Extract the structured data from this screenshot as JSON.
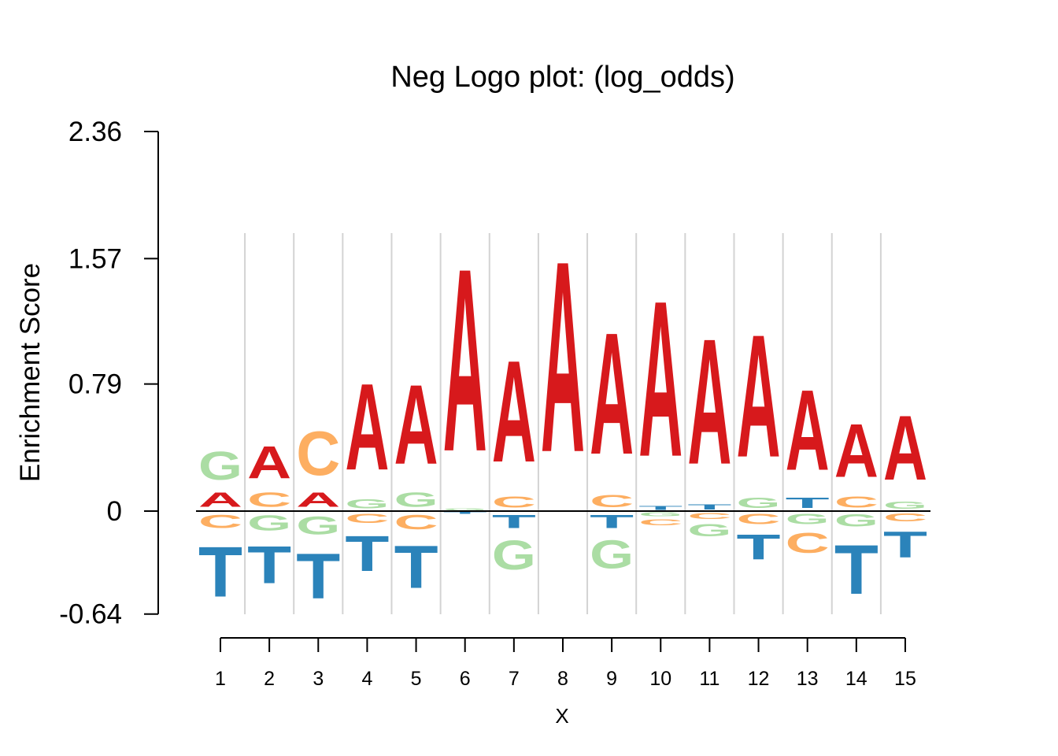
{
  "chart_data": {
    "type": "sequence-logo",
    "title": "Neg Logo plot: (log_odds)",
    "xlabel": "X",
    "ylabel": "Enrichment Score",
    "yticks": [
      -0.64,
      0,
      0.79,
      1.57,
      2.36
    ],
    "ytick_labels": [
      "-0.64",
      "0",
      "0.79",
      "1.57",
      "2.36"
    ],
    "ylim": [
      -0.64,
      2.36
    ],
    "positions": [
      "1",
      "2",
      "3",
      "4",
      "5",
      "6",
      "7",
      "8",
      "9",
      "10",
      "11",
      "12",
      "13",
      "14",
      "15"
    ],
    "colors": {
      "A": "#d7191c",
      "C": "#fdae61",
      "G": "#abdda4",
      "T": "#2b83ba"
    },
    "letters": [
      {
        "pos": 1,
        "positive": [
          [
            "A",
            0.14
          ],
          [
            "G",
            0.28
          ]
        ],
        "negative": [
          [
            "C",
            0.13
          ],
          [
            "T",
            0.5
          ]
        ]
      },
      {
        "pos": 2,
        "positive": [
          [
            "C",
            0.14
          ],
          [
            "A",
            0.32
          ]
        ],
        "negative": [
          [
            "G",
            0.15
          ],
          [
            "T",
            0.37
          ]
        ]
      },
      {
        "pos": 3,
        "positive": [
          [
            "A",
            0.14
          ],
          [
            "C",
            0.44
          ]
        ],
        "negative": [
          [
            "G",
            0.18
          ],
          [
            "T",
            0.45
          ]
        ]
      },
      {
        "pos": 4,
        "positive": [
          [
            "G",
            0.09
          ],
          [
            "A",
            0.86
          ]
        ],
        "negative": [
          [
            "C",
            0.09
          ],
          [
            "T",
            0.35
          ]
        ]
      },
      {
        "pos": 5,
        "positive": [
          [
            "G",
            0.14
          ],
          [
            "A",
            0.79
          ]
        ],
        "negative": [
          [
            "C",
            0.14
          ],
          [
            "T",
            0.42
          ]
        ]
      },
      {
        "pos": 6,
        "positive": [
          [
            "G",
            0.02
          ],
          [
            "A",
            1.82
          ]
        ],
        "negative": [
          [
            "T",
            0.02
          ]
        ]
      },
      {
        "pos": 7,
        "positive": [
          [
            "C",
            0.11
          ],
          [
            "A",
            1.01
          ]
        ],
        "negative": [
          [
            "T",
            0.13
          ],
          [
            "G",
            0.29
          ]
        ]
      },
      {
        "pos": 8,
        "positive": [
          [
            "A",
            1.9
          ]
        ],
        "negative": []
      },
      {
        "pos": 9,
        "positive": [
          [
            "C",
            0.12
          ],
          [
            "A",
            1.21
          ]
        ],
        "negative": [
          [
            "T",
            0.13
          ],
          [
            "G",
            0.28
          ]
        ]
      },
      {
        "pos": 10,
        "positive": [
          [
            "T",
            0.04
          ],
          [
            "A",
            1.55
          ]
        ],
        "negative": [
          [
            "G",
            0.04
          ],
          [
            "C",
            0.06
          ]
        ]
      },
      {
        "pos": 11,
        "positive": [
          [
            "T",
            0.05
          ],
          [
            "A",
            1.25
          ]
        ],
        "negative": [
          [
            "C",
            0.06
          ],
          [
            "G",
            0.12
          ]
        ]
      },
      {
        "pos": 12,
        "positive": [
          [
            "G",
            0.1
          ],
          [
            "A",
            1.22
          ]
        ],
        "negative": [
          [
            "C",
            0.1
          ],
          [
            "T",
            0.25
          ]
        ]
      },
      {
        "pos": 13,
        "positive": [
          [
            "T",
            0.1
          ],
          [
            "A",
            0.8
          ]
        ],
        "negative": [
          [
            "G",
            0.1
          ],
          [
            "C",
            0.2
          ]
        ]
      },
      {
        "pos": 14,
        "positive": [
          [
            "C",
            0.11
          ],
          [
            "A",
            0.53
          ]
        ],
        "negative": [
          [
            "G",
            0.12
          ],
          [
            "T",
            0.49
          ]
        ]
      },
      {
        "pos": 15,
        "positive": [
          [
            "G",
            0.07
          ],
          [
            "A",
            0.64
          ]
        ],
        "negative": [
          [
            "C",
            0.08
          ],
          [
            "T",
            0.26
          ]
        ]
      }
    ],
    "grid": true,
    "legend": "none"
  }
}
